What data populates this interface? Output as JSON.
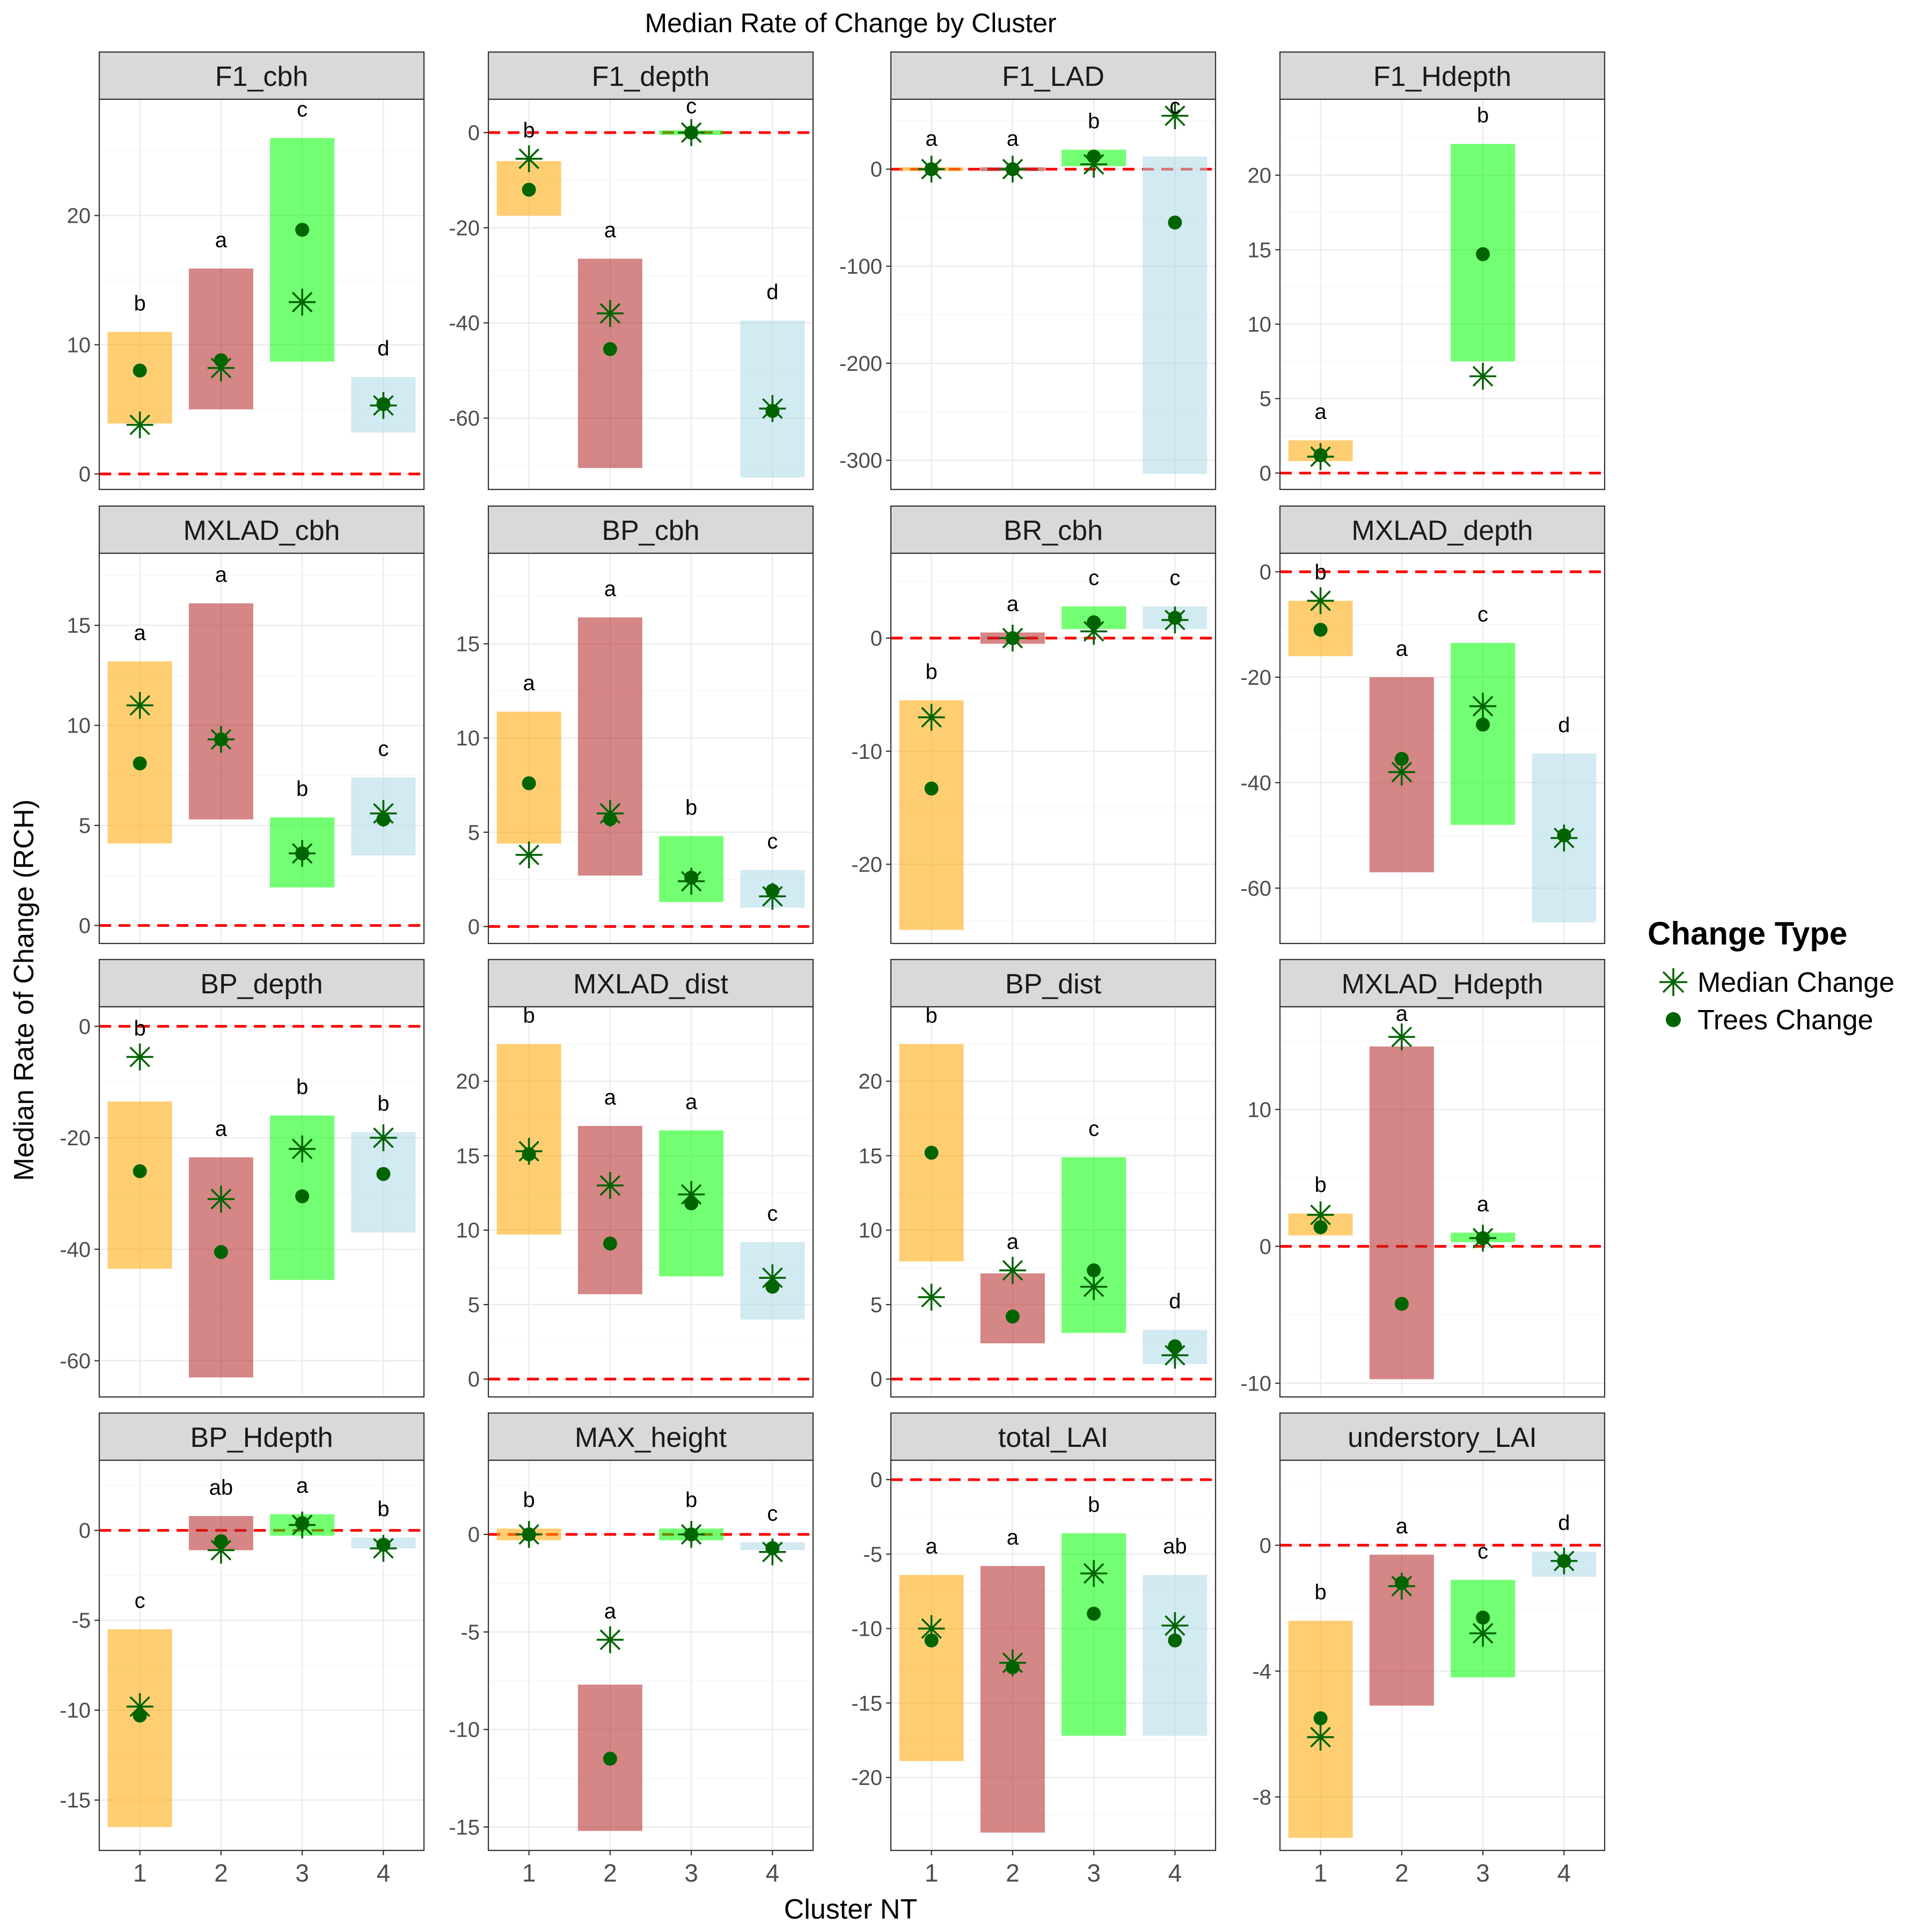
{
  "title": "Median Rate of Change by Cluster",
  "xlabel": "Cluster NT",
  "ylabel": "Median Rate of Change (RCH)",
  "legend": {
    "title": "Change Type",
    "items": [
      {
        "label": "Median Change",
        "marker": "star"
      },
      {
        "label": "Trees Change",
        "marker": "dot"
      }
    ]
  },
  "colors": {
    "cluster_1": "#ffa500",
    "cluster_2": "#b22222",
    "cluster_3": "#00ff00",
    "cluster_4": "#add8e6",
    "marker": "#006400",
    "zero_line": "#ff0000"
  },
  "chart_data": {
    "type": "faceted range + point",
    "categories": [
      "1",
      "2",
      "3",
      "4"
    ],
    "facets": [
      {
        "name": "F1_cbh",
        "yticks": [
          0,
          10,
          20
        ],
        "ylim": [
          -1.2,
          29
        ],
        "clusters": [
          {
            "range": [
              3.9,
              11.0
            ],
            "median": 3.8,
            "trees": 8.0,
            "letter": "b"
          },
          {
            "range": [
              5.0,
              15.9
            ],
            "median": 8.2,
            "trees": 8.8,
            "letter": "a"
          },
          {
            "range": [
              8.7,
              26.0
            ],
            "median": 13.3,
            "trees": 18.9,
            "letter": "c"
          },
          {
            "range": [
              3.2,
              7.5
            ],
            "median": 5.3,
            "trees": 5.4,
            "letter": "d"
          }
        ]
      },
      {
        "name": "F1_depth",
        "yticks": [
          -60,
          -40,
          -20,
          0
        ],
        "ylim": [
          -75,
          7
        ],
        "clusters": [
          {
            "range": [
              -17.5,
              -6.0
            ],
            "median": -5.5,
            "trees": -12.0,
            "letter": "b"
          },
          {
            "range": [
              -70.5,
              -26.5
            ],
            "median": -38.0,
            "trees": -45.5,
            "letter": "a"
          },
          {
            "range": [
              -0.5,
              0.5
            ],
            "median": 0.0,
            "trees": 0.0,
            "letter": "c"
          },
          {
            "range": [
              -72.5,
              -39.5
            ],
            "median": -58.0,
            "trees": -58.5,
            "letter": "d"
          }
        ]
      },
      {
        "name": "F1_LAD",
        "yticks": [
          -300,
          -200,
          -100,
          0
        ],
        "ylim": [
          -330,
          72
        ],
        "clusters": [
          {
            "range": [
              -2.0,
              2.0
            ],
            "median": 0.0,
            "trees": 0.0,
            "letter": "a"
          },
          {
            "range": [
              -2.0,
              2.0
            ],
            "median": 0.0,
            "trees": 0.0,
            "letter": "a"
          },
          {
            "range": [
              3.0,
              20.0
            ],
            "median": 5.0,
            "trees": 13.0,
            "letter": "b"
          },
          {
            "range": [
              -314.0,
              13.0
            ],
            "median": 55.0,
            "trees": -55.0,
            "letter": "c"
          }
        ]
      },
      {
        "name": "F1_Hdepth",
        "yticks": [
          0,
          5,
          10,
          15,
          20
        ],
        "ylim": [
          -1.1,
          25.1
        ],
        "clusters": [
          {
            "range": [
              0.8,
              2.2
            ],
            "median": 1.1,
            "trees": 1.2,
            "letter": "a"
          },
          null,
          {
            "range": [
              7.5,
              22.1
            ],
            "median": 6.5,
            "trees": 14.7,
            "letter": "b"
          },
          null
        ]
      },
      {
        "name": "MXLAD_cbh",
        "yticks": [
          0,
          5,
          10,
          15
        ],
        "ylim": [
          -0.9,
          18.6
        ],
        "clusters": [
          {
            "range": [
              4.1,
              13.2
            ],
            "median": 11.0,
            "trees": 8.1,
            "letter": "a"
          },
          {
            "range": [
              5.3,
              16.1
            ],
            "median": 9.3,
            "trees": 9.3,
            "letter": "a"
          },
          {
            "range": [
              1.9,
              5.4
            ],
            "median": 3.6,
            "trees": 3.6,
            "letter": "b"
          },
          {
            "range": [
              3.5,
              7.4
            ],
            "median": 5.6,
            "trees": 5.3,
            "letter": "c"
          }
        ]
      },
      {
        "name": "BP_cbh",
        "yticks": [
          0,
          5,
          10,
          15
        ],
        "ylim": [
          -0.9,
          19.8
        ],
        "clusters": [
          {
            "range": [
              4.4,
              11.4
            ],
            "median": 3.8,
            "trees": 7.6,
            "letter": "a"
          },
          {
            "range": [
              2.7,
              16.4
            ],
            "median": 6.0,
            "trees": 5.7,
            "letter": "a"
          },
          {
            "range": [
              1.3,
              4.8
            ],
            "median": 2.4,
            "trees": 2.6,
            "letter": "b"
          },
          {
            "range": [
              1.0,
              3.0
            ],
            "median": 1.6,
            "trees": 1.9,
            "letter": "c"
          }
        ]
      },
      {
        "name": "BR_cbh",
        "yticks": [
          -20,
          -10,
          0
        ],
        "ylim": [
          -27.0,
          7.5
        ],
        "clusters": [
          {
            "range": [
              -25.8,
              -5.5
            ],
            "median": -7.0,
            "trees": -13.3,
            "letter": "b"
          },
          {
            "range": [
              -0.5,
              0.5
            ],
            "median": 0.0,
            "trees": 0.0,
            "letter": "a"
          },
          {
            "range": [
              0.8,
              2.8
            ],
            "median": 0.6,
            "trees": 1.4,
            "letter": "c"
          },
          {
            "range": [
              0.8,
              2.8
            ],
            "median": 1.6,
            "trees": 1.8,
            "letter": "c"
          }
        ]
      },
      {
        "name": "MXLAD_depth",
        "yticks": [
          -60,
          -40,
          -20,
          0
        ],
        "ylim": [
          -70.5,
          3.5
        ],
        "clusters": [
          {
            "range": [
              -16.0,
              -5.5
            ],
            "median": -5.5,
            "trees": -11.0,
            "letter": "b"
          },
          {
            "range": [
              -57.0,
              -20.0
            ],
            "median": -38.0,
            "trees": -35.5,
            "letter": "a"
          },
          {
            "range": [
              -48.0,
              -13.5
            ],
            "median": -25.5,
            "trees": -29.0,
            "letter": "c"
          },
          {
            "range": [
              -66.5,
              -34.5
            ],
            "median": -50.5,
            "trees": -50.0,
            "letter": "d"
          }
        ]
      },
      {
        "name": "BP_depth",
        "yticks": [
          -60,
          -40,
          -20,
          0
        ],
        "ylim": [
          -66.5,
          3.5
        ],
        "clusters": [
          {
            "range": [
              -43.5,
              -13.5
            ],
            "median": -5.5,
            "trees": -26.0,
            "letter": "b"
          },
          {
            "range": [
              -63.0,
              -23.5
            ],
            "median": -31.0,
            "trees": -40.5,
            "letter": "a"
          },
          {
            "range": [
              -45.5,
              -16.0
            ],
            "median": -22.0,
            "trees": -30.5,
            "letter": "b"
          },
          {
            "range": [
              -37.0,
              -19.0
            ],
            "median": -20.0,
            "trees": -26.5,
            "letter": "b"
          }
        ]
      },
      {
        "name": "MXLAD_dist",
        "yticks": [
          0,
          5,
          10,
          15,
          20
        ],
        "ylim": [
          -1.2,
          25.0
        ],
        "clusters": [
          {
            "range": [
              9.7,
              22.5
            ],
            "median": 15.3,
            "trees": 15.1,
            "letter": "b"
          },
          {
            "range": [
              5.7,
              17.0
            ],
            "median": 13.0,
            "trees": 9.1,
            "letter": "a"
          },
          {
            "range": [
              6.9,
              16.7
            ],
            "median": 12.4,
            "trees": 11.8,
            "letter": "a"
          },
          {
            "range": [
              4.0,
              9.2
            ],
            "median": 6.8,
            "trees": 6.2,
            "letter": "c"
          }
        ]
      },
      {
        "name": "BP_dist",
        "yticks": [
          0,
          5,
          10,
          15,
          20
        ],
        "ylim": [
          -1.2,
          25.0
        ],
        "clusters": [
          {
            "range": [
              7.9,
              22.5
            ],
            "median": 5.5,
            "trees": 15.2,
            "letter": "b"
          },
          {
            "range": [
              2.4,
              7.1
            ],
            "median": 7.3,
            "trees": 4.2,
            "letter": "a"
          },
          {
            "range": [
              3.1,
              14.9
            ],
            "median": 6.2,
            "trees": 7.3,
            "letter": "c"
          },
          {
            "range": [
              1.0,
              3.3
            ],
            "median": 1.6,
            "trees": 2.2,
            "letter": "d"
          }
        ]
      },
      {
        "name": "MXLAD_Hdepth",
        "yticks": [
          -10,
          0,
          10
        ],
        "ylim": [
          -11.0,
          17.5
        ],
        "clusters": [
          {
            "range": [
              0.8,
              2.4
            ],
            "median": 2.3,
            "trees": 1.4,
            "letter": "b"
          },
          {
            "range": [
              -9.7,
              14.6
            ],
            "median": 15.3,
            "trees": -4.2,
            "letter": "a"
          },
          {
            "range": [
              0.3,
              1.0
            ],
            "median": 0.6,
            "trees": 0.6,
            "letter": "a"
          },
          null
        ]
      },
      {
        "name": "BP_Hdepth",
        "yticks": [
          -15,
          -10,
          -5,
          0
        ],
        "ylim": [
          -17.8,
          3.9
        ],
        "clusters": [
          {
            "range": [
              -16.5,
              -5.5
            ],
            "median": -9.8,
            "trees": -10.3,
            "letter": "c"
          },
          {
            "range": [
              -1.1,
              0.8
            ],
            "median": -1.1,
            "trees": -0.6,
            "letter": "ab"
          },
          {
            "range": [
              -0.3,
              0.9
            ],
            "median": 0.3,
            "trees": 0.4,
            "letter": "a"
          },
          {
            "range": [
              -1.0,
              -0.4
            ],
            "median": -1.0,
            "trees": -0.8,
            "letter": "b"
          }
        ]
      },
      {
        "name": "MAX_height",
        "yticks": [
          -15,
          -10,
          -5,
          0
        ],
        "ylim": [
          -16.2,
          3.8
        ],
        "clusters": [
          {
            "range": [
              -0.3,
              0.3
            ],
            "median": 0.0,
            "trees": 0.0,
            "letter": "b"
          },
          {
            "range": [
              -15.2,
              -7.7
            ],
            "median": -5.4,
            "trees": -11.5,
            "letter": "a"
          },
          {
            "range": [
              -0.3,
              0.3
            ],
            "median": 0.0,
            "trees": 0.0,
            "letter": "b"
          },
          {
            "range": [
              -0.8,
              -0.4
            ],
            "median": -0.9,
            "trees": -0.7,
            "letter": "c"
          }
        ]
      },
      {
        "name": "total_LAI",
        "yticks": [
          -20,
          -15,
          -10,
          -5,
          0
        ],
        "ylim": [
          -24.9,
          1.3
        ],
        "clusters": [
          {
            "range": [
              -18.9,
              -6.4
            ],
            "median": -10.0,
            "trees": -10.8,
            "letter": "a"
          },
          {
            "range": [
              -23.7,
              -5.8
            ],
            "median": -12.3,
            "trees": -12.6,
            "letter": "a"
          },
          {
            "range": [
              -17.2,
              -3.6
            ],
            "median": -6.3,
            "trees": -9.0,
            "letter": "b"
          },
          {
            "range": [
              -17.2,
              -6.4
            ],
            "median": -9.8,
            "trees": -10.8,
            "letter": "ab"
          }
        ]
      },
      {
        "name": "understory_LAI",
        "yticks": [
          -8,
          -4,
          0
        ],
        "ylim": [
          -9.7,
          2.7
        ],
        "clusters": [
          {
            "range": [
              -9.3,
              -2.4
            ],
            "median": -6.1,
            "trees": -5.5,
            "letter": "b"
          },
          {
            "range": [
              -5.1,
              -0.3
            ],
            "median": -1.3,
            "trees": -1.2,
            "letter": "a"
          },
          {
            "range": [
              -4.2,
              -1.1
            ],
            "median": -2.8,
            "trees": -2.3,
            "letter": "c"
          },
          {
            "range": [
              -1.0,
              -0.2
            ],
            "median": -0.5,
            "trees": -0.5,
            "letter": "d"
          }
        ]
      }
    ]
  }
}
